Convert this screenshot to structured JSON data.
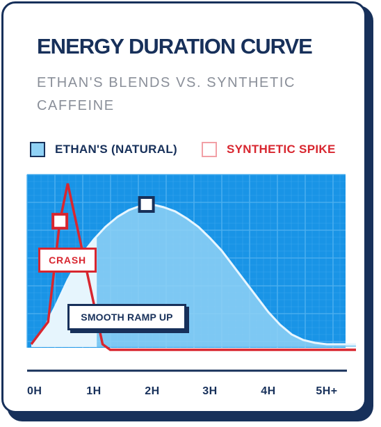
{
  "header": {
    "title": "ENERGY DURATION CURVE",
    "subtitle": "ETHAN'S BLENDS VS. SYNTHETIC CAFFEINE"
  },
  "legend": [
    {
      "label": "ETHAN'S (NATURAL)",
      "color": "#8fd1f5"
    },
    {
      "label": "SYNTHETIC SPIKE",
      "color": "#d8262f"
    }
  ],
  "annotations": {
    "crash": "CRASH",
    "smooth": "SMOOTH RAMP UP"
  },
  "colors": {
    "plot_bg": "#1994e6",
    "grid": "#4db0f0",
    "natural_fill": "#8fd1f5",
    "natural_line": "#e8f6ff",
    "synthetic": "#d8262f",
    "navy": "#17305a"
  },
  "chart_data": {
    "type": "area",
    "title": "ENERGY DURATION CURVE",
    "subtitle": "ETHAN'S BLENDS VS. SYNTHETIC CAFFEINE",
    "xlabel": "",
    "ylabel": "",
    "x_ticks": [
      "0H",
      "1H",
      "2H",
      "3H",
      "4H",
      "5H+"
    ],
    "xlim": [
      0,
      5.5
    ],
    "ylim": [
      0,
      100
    ],
    "grid": true,
    "legend_position": "top",
    "series": [
      {
        "name": "ETHAN'S (NATURAL)",
        "x": [
          0,
          0.2,
          0.4,
          0.6,
          0.8,
          1.0,
          1.2,
          1.4,
          1.6,
          1.8,
          2.0,
          2.2,
          2.4,
          2.6,
          2.8,
          3.0,
          3.2,
          3.4,
          3.6,
          3.8,
          4.0,
          4.2,
          4.4,
          4.6,
          4.8,
          5.0,
          5.5
        ],
        "values": [
          0,
          8,
          26,
          46,
          63,
          75,
          84,
          91,
          96,
          99,
          100,
          98,
          95,
          90,
          84,
          76,
          67,
          56,
          45,
          34,
          23,
          14,
          7,
          3,
          1,
          0,
          0
        ]
      },
      {
        "name": "SYNTHETIC SPIKE",
        "x": [
          0,
          0.3,
          0.48,
          0.6,
          1.15,
          1.28,
          5.5
        ],
        "values": [
          0,
          16,
          88,
          115,
          0,
          -4,
          -4
        ]
      }
    ],
    "markers": [
      {
        "series": "SYNTHETIC SPIKE",
        "x": 0.48,
        "y": 88
      },
      {
        "series": "ETHAN'S (NATURAL)",
        "x": 1.9,
        "y": 100
      }
    ]
  }
}
